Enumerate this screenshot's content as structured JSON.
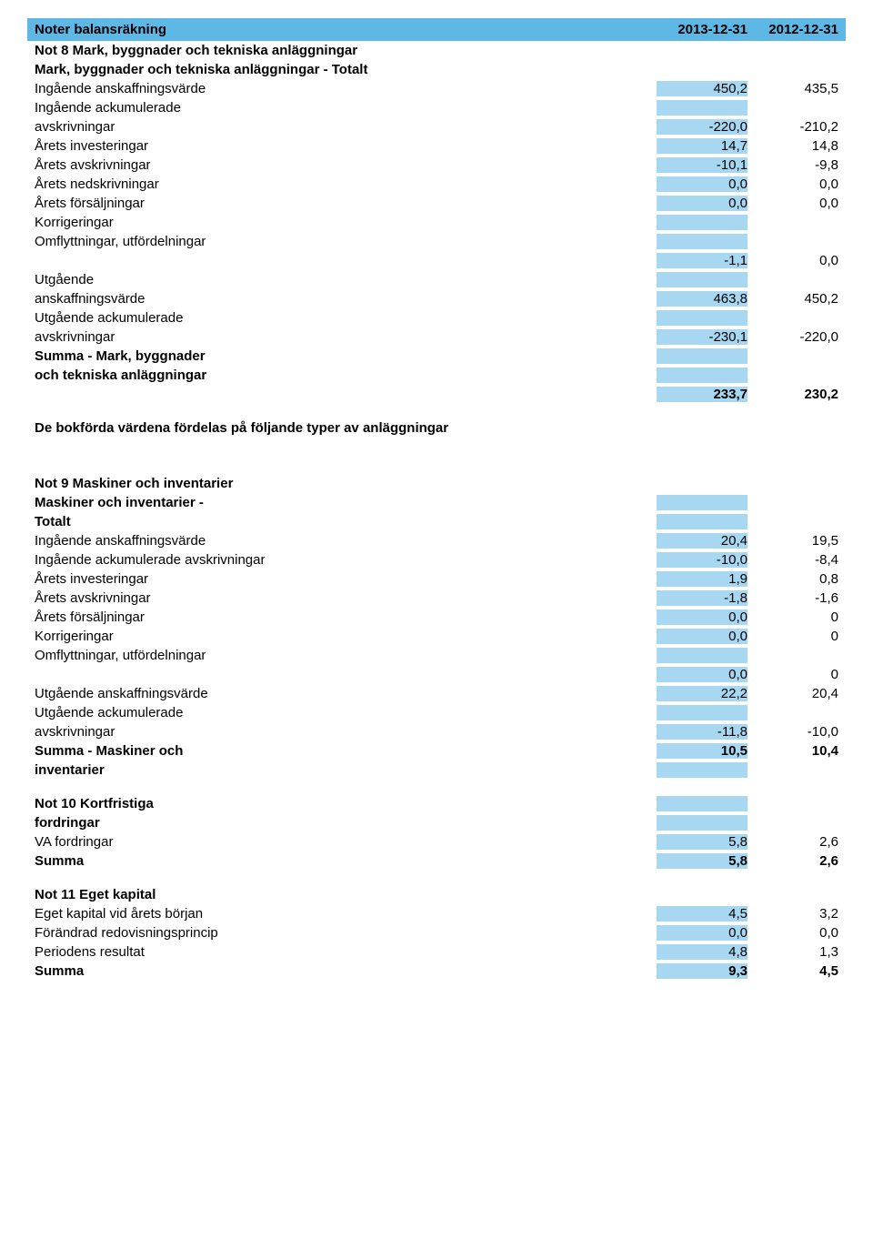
{
  "highlight_color": "#a8d7f2",
  "header_bg": "#5db8e6",
  "header": {
    "title": "Noter balansräkning",
    "col1": "2013-12-31",
    "col2": "2012-12-31"
  },
  "note8": {
    "title": "Not 8 Mark, byggnader och tekniska anläggningar",
    "subtitle": "Mark, byggnader och tekniska anläggningar - Totalt",
    "rows": [
      {
        "label": "Ingående anskaffningsvärde",
        "v1": "450,2",
        "v2": "435,5"
      },
      {
        "label": "Ingående ackumulerade",
        "label2": "avskrivningar",
        "v1": "-220,0",
        "v2": "-210,2"
      },
      {
        "label": "Årets investeringar",
        "v1": "14,7",
        "v2": "14,8"
      },
      {
        "label": "Årets avskrivningar",
        "v1": "-10,1",
        "v2": "-9,8"
      },
      {
        "label": "Årets nedskrivningar",
        "v1": "0,0",
        "v2": "0,0"
      },
      {
        "label": "Årets försäljningar",
        "v1": "0,0",
        "v2": "0,0"
      },
      {
        "label": "Korrigeringar"
      },
      {
        "label": "Omflyttningar, utfördelningar"
      },
      {
        "label": "",
        "v1": "-1,1",
        "v2": "0,0"
      },
      {
        "label": "Utgående",
        "label2": "anskaffningsvärde",
        "v1": "463,8",
        "v2": "450,2"
      },
      {
        "label": "Utgående ackumulerade",
        "label2": "avskrivningar",
        "v1": "-230,1",
        "v2": "-220,0"
      }
    ],
    "sum_label1": "Summa - Mark, byggnader",
    "sum_label2": "och tekniska anläggningar",
    "sum_v1": "233,7",
    "sum_v2": "230,2",
    "footer": "De bokförda värdena fördelas på följande typer av anläggningar"
  },
  "note9": {
    "title": "Not 9 Maskiner och inventarier",
    "subtitle1": "Maskiner och inventarier -",
    "subtitle2": "Totalt",
    "rows": [
      {
        "label": "Ingående anskaffningsvärde",
        "v1": "20,4",
        "v2": "19,5"
      },
      {
        "label": "Ingående ackumulerade avskrivningar",
        "v1": "-10,0",
        "v2": "-8,4"
      },
      {
        "label": "Årets investeringar",
        "v1": "1,9",
        "v2": "0,8"
      },
      {
        "label": "Årets avskrivningar",
        "v1": "-1,8",
        "v2": "-1,6"
      },
      {
        "label": "Årets försäljningar",
        "v1": "0,0",
        "v2": "0"
      },
      {
        "label": "Korrigeringar",
        "v1": "0,0",
        "v2": "0"
      },
      {
        "label": "Omflyttningar, utfördelningar"
      },
      {
        "label": "",
        "v1": "0,0",
        "v2": "0"
      },
      {
        "label": "Utgående anskaffningsvärde",
        "v1": "22,2",
        "v2": "20,4"
      },
      {
        "label": "Utgående ackumulerade",
        "label2": "avskrivningar",
        "v1": "-11,8",
        "v2": "-10,0"
      }
    ],
    "sum_label1": "Summa - Maskiner och",
    "sum_label2": "inventarier",
    "sum_v1": "10,5",
    "sum_v2": "10,4"
  },
  "note10": {
    "title1": "Not 10 Kortfristiga",
    "title2": "fordringar",
    "rows": [
      {
        "label": "VA fordringar",
        "v1": "5,8",
        "v2": "2,6"
      }
    ],
    "sum_label": "Summa",
    "sum_v1": "5,8",
    "sum_v2": "2,6"
  },
  "note11": {
    "title": "Not 11 Eget kapital",
    "rows": [
      {
        "label": "Eget kapital vid årets början",
        "v1": "4,5",
        "v2": "3,2"
      },
      {
        "label": "Förändrad redovisningsprincip",
        "v1": "0,0",
        "v2": "0,0"
      },
      {
        "label": "Periodens resultat",
        "v1": "4,8",
        "v2": "1,3"
      }
    ],
    "sum_label": "Summa",
    "sum_v1": "9,3",
    "sum_v2": "4,5"
  }
}
